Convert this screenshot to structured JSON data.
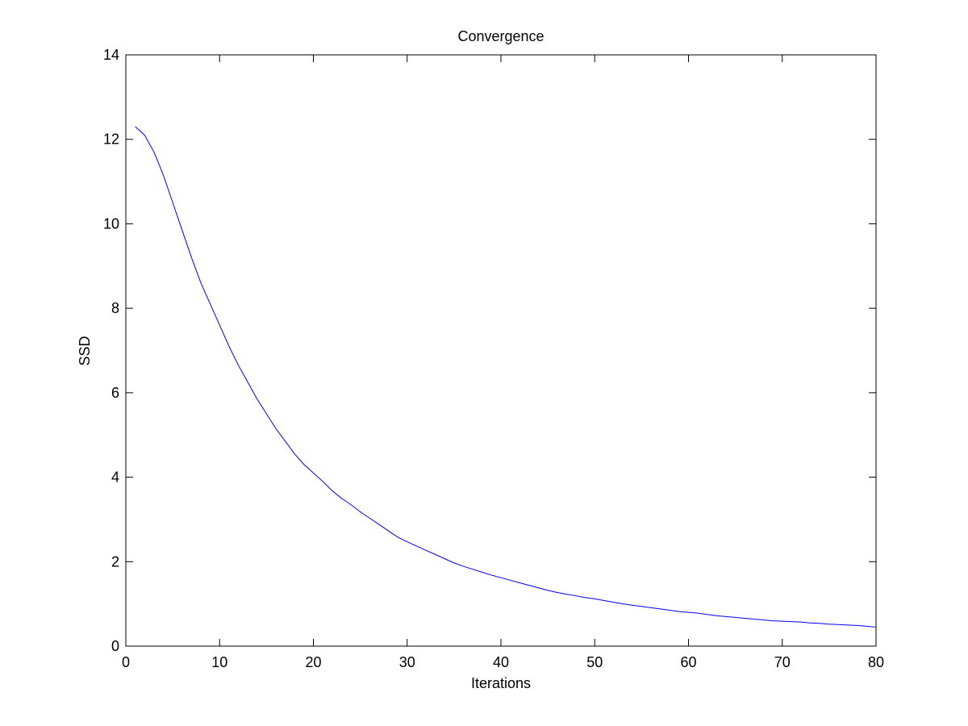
{
  "chart_data": {
    "type": "line",
    "title": "Convergence",
    "x_label": "Iterations",
    "y_label": "SSD",
    "x": [
      1,
      2,
      3,
      4,
      5,
      6,
      7,
      8,
      9,
      10,
      11,
      12,
      13,
      14,
      15,
      16,
      17,
      18,
      19,
      20,
      21,
      22,
      23,
      24,
      25,
      26,
      27,
      28,
      29,
      30,
      31,
      32,
      33,
      34,
      35,
      36,
      37,
      38,
      39,
      40,
      41,
      42,
      43,
      44,
      45,
      46,
      47,
      48,
      49,
      50,
      51,
      52,
      53,
      54,
      55,
      56,
      57,
      58,
      59,
      60,
      61,
      62,
      63,
      64,
      65,
      66,
      67,
      68,
      69,
      70,
      71,
      72,
      73,
      74,
      75,
      76,
      77,
      78,
      79,
      80
    ],
    "series": [
      {
        "color": "#0000ff",
        "values": [
          12.3,
          12.1,
          11.7,
          11.15,
          10.5,
          9.85,
          9.2,
          8.6,
          8.1,
          7.6,
          7.1,
          6.65,
          6.25,
          5.85,
          5.5,
          5.15,
          4.85,
          4.55,
          4.3,
          4.1,
          3.9,
          3.68,
          3.5,
          3.35,
          3.18,
          3.03,
          2.88,
          2.73,
          2.58,
          2.47,
          2.37,
          2.27,
          2.17,
          2.07,
          1.97,
          1.89,
          1.82,
          1.75,
          1.68,
          1.62,
          1.56,
          1.5,
          1.44,
          1.38,
          1.32,
          1.27,
          1.23,
          1.19,
          1.15,
          1.12,
          1.08,
          1.04,
          1.0,
          0.97,
          0.94,
          0.91,
          0.88,
          0.85,
          0.82,
          0.8,
          0.78,
          0.75,
          0.72,
          0.7,
          0.68,
          0.66,
          0.64,
          0.62,
          0.6,
          0.59,
          0.58,
          0.57,
          0.55,
          0.54,
          0.52,
          0.51,
          0.5,
          0.49,
          0.47,
          0.45
        ]
      }
    ],
    "xlim": [
      0,
      80
    ],
    "ylim": [
      0,
      14
    ],
    "xticks": [
      0,
      10,
      20,
      30,
      40,
      50,
      60,
      70,
      80
    ],
    "yticks": [
      0,
      2,
      4,
      6,
      8,
      10,
      12,
      14
    ],
    "grid": false
  }
}
